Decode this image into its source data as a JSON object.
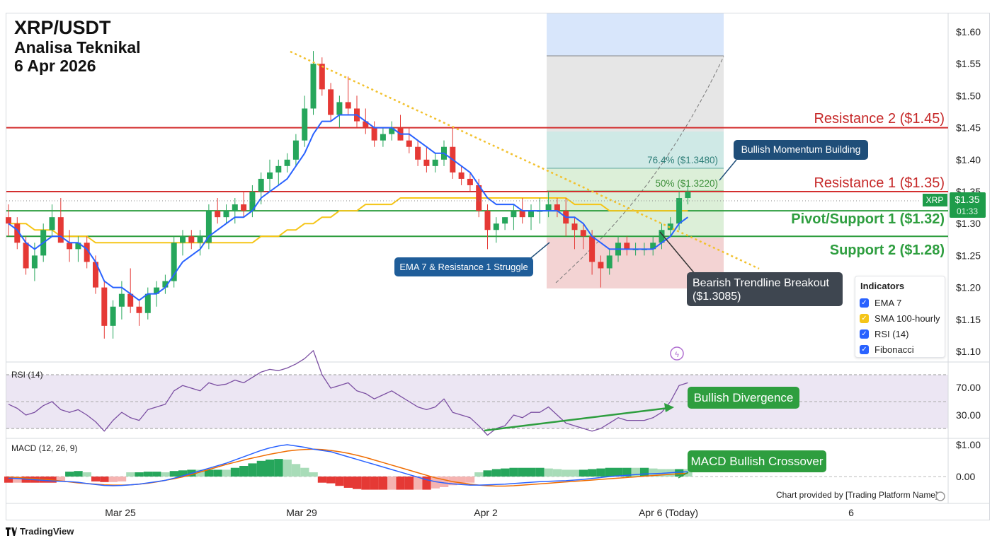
{
  "header": {
    "pair": "XRP/USDT",
    "subtitle": "Analisa Teknikal",
    "date": "6 Apr 2026"
  },
  "price_axis": {
    "ticks": [
      "$1.60",
      "$1.55",
      "$1.50",
      "$1.45",
      "$1.40",
      "$1.35",
      "$1.30",
      "$1.25",
      "$1.20",
      "$1.15",
      "$1.10"
    ]
  },
  "price_tag": {
    "symbol": "XRP",
    "price": "$1.35",
    "countdown": "01:33"
  },
  "levels": [
    {
      "label": "Resistance 2 ($1.45)",
      "price": 1.45,
      "color": "#d32f2f"
    },
    {
      "label": "Resistance 1 ($1.35)",
      "price": 1.35,
      "color": "#d32f2f"
    },
    {
      "label": "Pivot/Support 1 ($1.32)",
      "price": 1.32,
      "color": "#2e9e3f"
    },
    {
      "label": "Support 2 ($1.28)",
      "price": 1.28,
      "color": "#2e9e3f"
    }
  ],
  "fibonacci": [
    {
      "label": "76.4% ($1.3480)",
      "price": 1.348
    },
    {
      "label": "50% ($1.3220)",
      "price": 1.322
    }
  ],
  "annotations": {
    "bullish_momentum": "Bullish Momentum Building",
    "ema_struggle": "EMA 7 & Resistance 1 Struggle",
    "bearish_breakout_line1": "Bearish Trendline Breakout",
    "bearish_breakout_line2": "($1.3085)",
    "bullish_divergence": "Bullish Divergence",
    "macd_crossover": "MACD Bullish Crossover"
  },
  "legend": {
    "title": "Indicators",
    "items": [
      {
        "label": "EMA 7",
        "color": "#2962ff"
      },
      {
        "label": "SMA 100-hourly",
        "color": "#f5c518"
      },
      {
        "label": "RSI (14)",
        "color": "#2962ff"
      },
      {
        "label": "Fibonacci",
        "color": "#2962ff"
      }
    ]
  },
  "rsi": {
    "label": "RSI (14)",
    "ticks": [
      "70.00",
      "30.00"
    ]
  },
  "macd": {
    "label": "MACD (12, 26, 9)",
    "ticks": [
      "$1.00",
      "0.00"
    ]
  },
  "time_axis": {
    "ticks": [
      "Mar 25",
      "Mar 29",
      "Apr 2",
      "Apr 6 (Today)",
      "6"
    ]
  },
  "credit": "Chart provided by [Trading Platform Name]",
  "brand": "TradingView",
  "colors": {
    "up": "#26a65b",
    "down": "#e53935",
    "ema": "#2962ff",
    "sma": "#f5c518",
    "rsi_line": "#7b4fa2",
    "macd_line": "#2962ff",
    "signal_line": "#ef6c00"
  },
  "chart_data": {
    "type": "candlestick",
    "title": "XRP/USDT",
    "ylim": [
      1.1,
      1.6
    ],
    "candles": [
      [
        1.31,
        1.33,
        1.28,
        1.3
      ],
      [
        1.3,
        1.31,
        1.26,
        1.27
      ],
      [
        1.27,
        1.28,
        1.22,
        1.23
      ],
      [
        1.23,
        1.27,
        1.21,
        1.25
      ],
      [
        1.25,
        1.3,
        1.24,
        1.29
      ],
      [
        1.29,
        1.33,
        1.28,
        1.31
      ],
      [
        1.31,
        1.34,
        1.27,
        1.27
      ],
      [
        1.27,
        1.29,
        1.24,
        1.26
      ],
      [
        1.26,
        1.28,
        1.24,
        1.27
      ],
      [
        1.27,
        1.28,
        1.23,
        1.24
      ],
      [
        1.24,
        1.25,
        1.19,
        1.2
      ],
      [
        1.2,
        1.21,
        1.12,
        1.14
      ],
      [
        1.14,
        1.18,
        1.12,
        1.17
      ],
      [
        1.17,
        1.21,
        1.15,
        1.19
      ],
      [
        1.19,
        1.23,
        1.16,
        1.17
      ],
      [
        1.17,
        1.18,
        1.14,
        1.16
      ],
      [
        1.16,
        1.2,
        1.15,
        1.19
      ],
      [
        1.19,
        1.21,
        1.17,
        1.2
      ],
      [
        1.2,
        1.22,
        1.19,
        1.21
      ],
      [
        1.21,
        1.28,
        1.2,
        1.27
      ],
      [
        1.27,
        1.29,
        1.25,
        1.28
      ],
      [
        1.28,
        1.29,
        1.26,
        1.27
      ],
      [
        1.27,
        1.29,
        1.25,
        1.28
      ],
      [
        1.27,
        1.33,
        1.26,
        1.32
      ],
      [
        1.32,
        1.34,
        1.3,
        1.31
      ],
      [
        1.31,
        1.33,
        1.3,
        1.32
      ],
      [
        1.32,
        1.34,
        1.3,
        1.33
      ],
      [
        1.33,
        1.35,
        1.31,
        1.32
      ],
      [
        1.32,
        1.36,
        1.31,
        1.35
      ],
      [
        1.35,
        1.38,
        1.33,
        1.37
      ],
      [
        1.37,
        1.4,
        1.35,
        1.38
      ],
      [
        1.38,
        1.4,
        1.36,
        1.39
      ],
      [
        1.39,
        1.41,
        1.38,
        1.4
      ],
      [
        1.4,
        1.44,
        1.39,
        1.43
      ],
      [
        1.43,
        1.5,
        1.42,
        1.48
      ],
      [
        1.48,
        1.57,
        1.47,
        1.55
      ],
      [
        1.55,
        1.56,
        1.5,
        1.51
      ],
      [
        1.51,
        1.52,
        1.46,
        1.47
      ],
      [
        1.47,
        1.5,
        1.45,
        1.49
      ],
      [
        1.49,
        1.53,
        1.47,
        1.48
      ],
      [
        1.48,
        1.5,
        1.45,
        1.46
      ],
      [
        1.46,
        1.48,
        1.44,
        1.45
      ],
      [
        1.45,
        1.46,
        1.42,
        1.43
      ],
      [
        1.43,
        1.45,
        1.42,
        1.44
      ],
      [
        1.44,
        1.46,
        1.43,
        1.45
      ],
      [
        1.45,
        1.47,
        1.43,
        1.43
      ],
      [
        1.43,
        1.45,
        1.41,
        1.42
      ],
      [
        1.42,
        1.43,
        1.39,
        1.4
      ],
      [
        1.4,
        1.42,
        1.38,
        1.39
      ],
      [
        1.39,
        1.41,
        1.38,
        1.4
      ],
      [
        1.4,
        1.43,
        1.39,
        1.42
      ],
      [
        1.42,
        1.45,
        1.37,
        1.38
      ],
      [
        1.38,
        1.39,
        1.36,
        1.37
      ],
      [
        1.37,
        1.38,
        1.35,
        1.36
      ],
      [
        1.36,
        1.37,
        1.31,
        1.32
      ],
      [
        1.32,
        1.33,
        1.26,
        1.29
      ],
      [
        1.29,
        1.31,
        1.27,
        1.3
      ],
      [
        1.3,
        1.31,
        1.29,
        1.31
      ],
      [
        1.31,
        1.33,
        1.29,
        1.32
      ],
      [
        1.32,
        1.34,
        1.3,
        1.31
      ],
      [
        1.31,
        1.33,
        1.29,
        1.32
      ],
      [
        1.32,
        1.34,
        1.3,
        1.32
      ],
      [
        1.32,
        1.35,
        1.31,
        1.33
      ],
      [
        1.33,
        1.34,
        1.31,
        1.32
      ],
      [
        1.32,
        1.34,
        1.28,
        1.3
      ],
      [
        1.3,
        1.31,
        1.26,
        1.29
      ],
      [
        1.29,
        1.3,
        1.26,
        1.28
      ],
      [
        1.28,
        1.29,
        1.22,
        1.24
      ],
      [
        1.24,
        1.25,
        1.2,
        1.23
      ],
      [
        1.23,
        1.26,
        1.22,
        1.25
      ],
      [
        1.25,
        1.28,
        1.24,
        1.27
      ],
      [
        1.27,
        1.28,
        1.25,
        1.26
      ],
      [
        1.26,
        1.27,
        1.25,
        1.26
      ],
      [
        1.26,
        1.27,
        1.25,
        1.26
      ],
      [
        1.26,
        1.28,
        1.25,
        1.27
      ],
      [
        1.27,
        1.3,
        1.26,
        1.29
      ],
      [
        1.29,
        1.31,
        1.28,
        1.3
      ],
      [
        1.3,
        1.35,
        1.29,
        1.34
      ],
      [
        1.34,
        1.36,
        1.33,
        1.35
      ]
    ],
    "ema7": [
      1.3,
      1.29,
      1.27,
      1.26,
      1.27,
      1.28,
      1.28,
      1.27,
      1.27,
      1.26,
      1.24,
      1.21,
      1.2,
      1.2,
      1.19,
      1.18,
      1.19,
      1.19,
      1.2,
      1.22,
      1.24,
      1.25,
      1.26,
      1.28,
      1.29,
      1.3,
      1.31,
      1.31,
      1.32,
      1.34,
      1.35,
      1.36,
      1.37,
      1.39,
      1.41,
      1.44,
      1.46,
      1.46,
      1.47,
      1.47,
      1.47,
      1.46,
      1.45,
      1.45,
      1.45,
      1.44,
      1.44,
      1.43,
      1.42,
      1.41,
      1.41,
      1.4,
      1.39,
      1.38,
      1.36,
      1.34,
      1.33,
      1.33,
      1.33,
      1.32,
      1.32,
      1.32,
      1.32,
      1.32,
      1.31,
      1.31,
      1.3,
      1.28,
      1.27,
      1.26,
      1.26,
      1.26,
      1.26,
      1.26,
      1.26,
      1.27,
      1.28,
      1.3,
      1.31
    ],
    "sma100": [
      1.3,
      1.3,
      1.3,
      1.29,
      1.29,
      1.29,
      1.28,
      1.28,
      1.28,
      1.28,
      1.27,
      1.27,
      1.27,
      1.27,
      1.27,
      1.27,
      1.27,
      1.27,
      1.27,
      1.27,
      1.27,
      1.27,
      1.27,
      1.27,
      1.27,
      1.27,
      1.27,
      1.27,
      1.27,
      1.28,
      1.28,
      1.28,
      1.29,
      1.29,
      1.3,
      1.3,
      1.31,
      1.31,
      1.32,
      1.32,
      1.32,
      1.33,
      1.33,
      1.33,
      1.33,
      1.34,
      1.34,
      1.34,
      1.34,
      1.34,
      1.34,
      1.34,
      1.34,
      1.34,
      1.34,
      1.34,
      1.34,
      1.34,
      1.34,
      1.34,
      1.34,
      1.34,
      1.34,
      1.34,
      1.34,
      1.33,
      1.33,
      1.33,
      1.33,
      1.32,
      1.32,
      1.32,
      1.32,
      1.32,
      1.32,
      1.32,
      1.32,
      1.32,
      1.32
    ],
    "rsi": [
      48,
      45,
      40,
      42,
      47,
      50,
      44,
      42,
      44,
      40,
      35,
      28,
      36,
      42,
      38,
      36,
      44,
      46,
      48,
      58,
      62,
      60,
      58,
      64,
      62,
      63,
      66,
      64,
      68,
      72,
      74,
      73,
      75,
      78,
      82,
      88,
      70,
      60,
      62,
      64,
      58,
      56,
      52,
      55,
      58,
      54,
      50,
      46,
      44,
      46,
      52,
      42,
      40,
      38,
      32,
      25,
      30,
      32,
      40,
      38,
      42,
      42,
      46,
      40,
      34,
      32,
      30,
      28,
      30,
      34,
      38,
      36,
      36,
      36,
      38,
      42,
      50,
      62,
      64
    ],
    "macd": [
      -0.05,
      -0.06,
      -0.08,
      -0.1,
      -0.12,
      -0.14,
      -0.15,
      -0.16,
      -0.18,
      -0.22,
      -0.25,
      -0.28,
      -0.29,
      -0.28,
      -0.26,
      -0.24,
      -0.2,
      -0.16,
      -0.12,
      -0.05,
      0.02,
      0.1,
      0.18,
      0.26,
      0.34,
      0.42,
      0.52,
      0.62,
      0.72,
      0.82,
      0.9,
      0.96,
      1.0,
      0.96,
      0.92,
      0.86,
      0.82,
      0.78,
      0.7,
      0.62,
      0.54,
      0.46,
      0.38,
      0.3,
      0.22,
      0.14,
      0.06,
      -0.02,
      -0.1,
      -0.16,
      -0.2,
      -0.23,
      -0.25,
      -0.27,
      -0.27,
      -0.26,
      -0.25,
      -0.24,
      -0.22,
      -0.2,
      -0.18,
      -0.16,
      -0.15,
      -0.14,
      -0.13,
      -0.11,
      -0.09,
      -0.06,
      -0.03,
      0.0,
      0.02,
      0.04,
      0.06,
      0.08,
      0.09,
      0.1,
      0.12,
      0.14,
      0.15
    ],
    "signal": [
      -0.02,
      -0.03,
      -0.05,
      -0.07,
      -0.09,
      -0.11,
      -0.14,
      -0.17,
      -0.2,
      -0.22,
      -0.24,
      -0.26,
      -0.27,
      -0.27,
      -0.26,
      -0.24,
      -0.21,
      -0.17,
      -0.12,
      -0.07,
      -0.01,
      0.06,
      0.14,
      0.22,
      0.3,
      0.38,
      0.45,
      0.52,
      0.58,
      0.64,
      0.7,
      0.75,
      0.8,
      0.83,
      0.85,
      0.86,
      0.85,
      0.82,
      0.78,
      0.73,
      0.67,
      0.6,
      0.52,
      0.44,
      0.36,
      0.28,
      0.2,
      0.12,
      0.04,
      -0.04,
      -0.1,
      -0.16,
      -0.2,
      -0.24,
      -0.27,
      -0.29,
      -0.3,
      -0.3,
      -0.29,
      -0.27,
      -0.25,
      -0.23,
      -0.21,
      -0.19,
      -0.17,
      -0.15,
      -0.13,
      -0.11,
      -0.09,
      -0.07,
      -0.05,
      -0.03,
      -0.01,
      0.01,
      0.03,
      0.05,
      0.07,
      0.09,
      0.1
    ],
    "macd_ylim": [
      -0.35,
      1.05
    ],
    "rsi_ylim": [
      10,
      95
    ]
  }
}
